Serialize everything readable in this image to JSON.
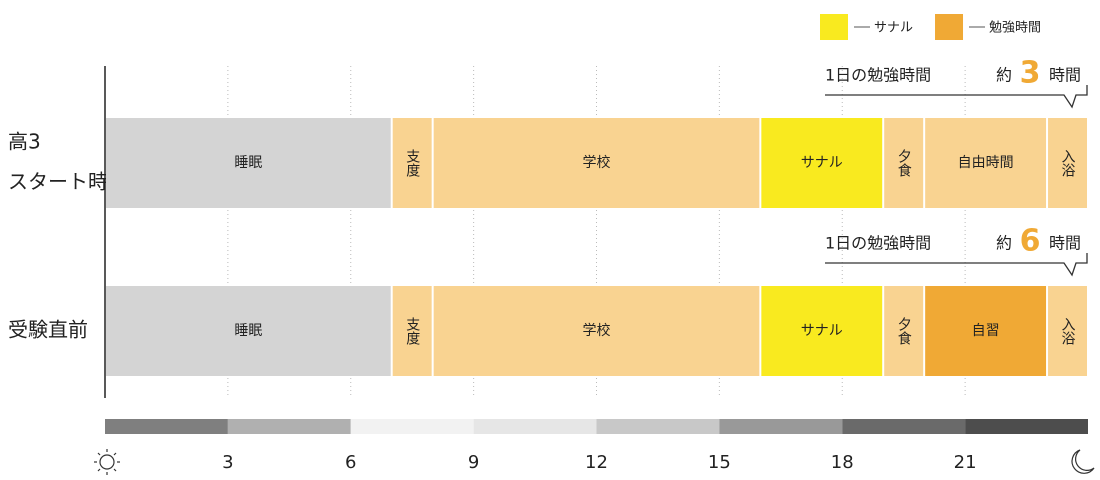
{
  "chart_data": {
    "type": "timeline",
    "xlim": [
      0,
      24
    ],
    "xticks": [
      3,
      6,
      9,
      12,
      15,
      18,
      21
    ],
    "legend": [
      {
        "name": "サナル",
        "color": "#f9ea1f"
      },
      {
        "name": "勉強時間",
        "color": "#f0a935"
      }
    ],
    "rows": [
      {
        "label": [
          "高3",
          "スタート時"
        ],
        "annotation": {
          "text": "1日の勉強時間",
          "prefix": "約",
          "value": 3,
          "unit": "時間"
        },
        "segments": [
          {
            "name": "睡眠",
            "hours": 7,
            "color": "#d4d4d4"
          },
          {
            "name": "支度",
            "hours": 1,
            "color": "#f9d391"
          },
          {
            "name": "学校",
            "hours": 8,
            "color": "#f9d391"
          },
          {
            "name": "サナル",
            "hours": 3,
            "color": "#f9ea1f"
          },
          {
            "name": "夕食",
            "hours": 1,
            "color": "#f9d391"
          },
          {
            "name": "自由時間",
            "hours": 3,
            "color": "#f9d391"
          },
          {
            "name": "入浴",
            "hours": 1,
            "color": "#f9d391"
          }
        ]
      },
      {
        "label": [
          "受験直前"
        ],
        "annotation": {
          "text": "1日の勉強時間",
          "prefix": "約",
          "value": 6,
          "unit": "時間"
        },
        "segments": [
          {
            "name": "睡眠",
            "hours": 7,
            "color": "#d4d4d4"
          },
          {
            "name": "支度",
            "hours": 1,
            "color": "#f9d391"
          },
          {
            "name": "学校",
            "hours": 8,
            "color": "#f9d391"
          },
          {
            "name": "サナル",
            "hours": 3,
            "color": "#f9ea1f"
          },
          {
            "name": "夕食",
            "hours": 1,
            "color": "#f9d391"
          },
          {
            "name": "自習",
            "hours": 3,
            "color": "#f0a935"
          },
          {
            "name": "入浴",
            "hours": 1,
            "color": "#f9d391"
          }
        ]
      }
    ],
    "daylight_colors": [
      "#7f7f7f",
      "#b0b0b0",
      "#f2f2f2",
      "#e6e6e6",
      "#c8c8c8",
      "#999999",
      "#6a6a6a",
      "#4d4d4d"
    ]
  }
}
